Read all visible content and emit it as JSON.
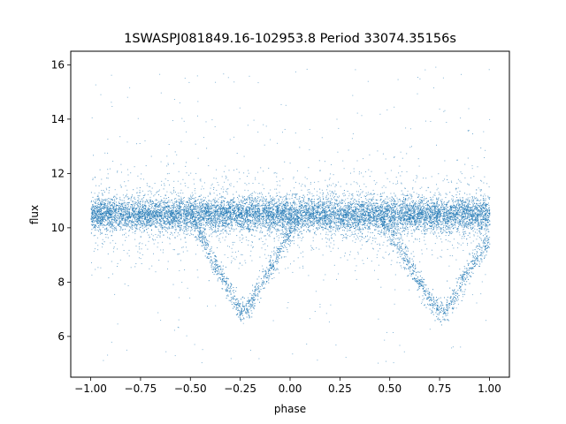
{
  "chart_data": {
    "type": "scatter",
    "title": "1SWASPJ081849.16-102953.8 Period 33074.35156s",
    "xlabel": "phase",
    "ylabel": "flux",
    "xlim": [
      -1.1,
      1.1
    ],
    "ylim": [
      4.5,
      16.5
    ],
    "xticks": [
      -1.0,
      -0.75,
      -0.5,
      -0.25,
      0.0,
      0.25,
      0.5,
      0.75,
      1.0
    ],
    "xtick_labels": [
      "−1.00",
      "−0.75",
      "−0.50",
      "−0.25",
      "0.00",
      "0.25",
      "0.50",
      "0.75",
      "1.00"
    ],
    "yticks": [
      6,
      8,
      10,
      12,
      14,
      16
    ],
    "ytick_labels": [
      "6",
      "8",
      "10",
      "12",
      "14",
      "16"
    ],
    "grid": false,
    "point_color": "#1f77b4",
    "series": [
      {
        "description_of_shape": "dense baseline band",
        "x": [
          -1.0,
          -0.75,
          -0.5,
          -0.25,
          0.0,
          0.25,
          0.5,
          0.75,
          1.0
        ],
        "y": [
          10.5,
          10.5,
          10.5,
          10.5,
          10.5,
          10.5,
          10.5,
          10.5,
          10.5
        ],
        "spread": 0.3
      },
      {
        "description_of_shape": "eclipse minima",
        "x": [
          -0.5,
          -0.4,
          -0.3,
          -0.25,
          -0.2,
          -0.1,
          0.0,
          0.05,
          0.45,
          0.6,
          0.7,
          0.75,
          0.8,
          0.9,
          1.0
        ],
        "y": [
          10.4,
          9.0,
          7.6,
          6.9,
          7.2,
          8.5,
          9.9,
          10.5,
          10.4,
          8.6,
          7.3,
          6.9,
          7.2,
          8.5,
          9.6
        ]
      }
    ]
  }
}
